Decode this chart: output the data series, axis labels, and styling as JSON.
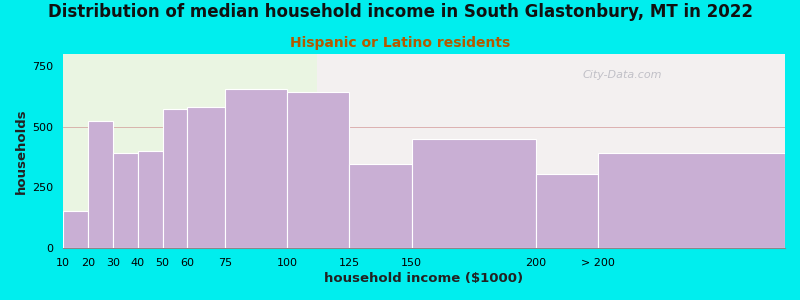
{
  "title": "Distribution of median household income in South Glastonbury, MT in 2022",
  "subtitle": "Hispanic or Latino residents",
  "xlabel": "household income ($1000)",
  "ylabel": "households",
  "bin_edges": [
    10,
    20,
    30,
    40,
    50,
    60,
    75,
    100,
    125,
    150,
    200,
    225,
    300
  ],
  "tick_positions": [
    10,
    20,
    30,
    40,
    50,
    60,
    75,
    100,
    125,
    150,
    200,
    225
  ],
  "tick_labels": [
    "10",
    "20",
    "30",
    "40",
    "50",
    "60",
    "75",
    "100",
    "125",
    "150",
    "200",
    "> 200"
  ],
  "bar_heights": [
    155,
    525,
    390,
    400,
    575,
    580,
    655,
    645,
    345,
    450,
    305,
    390
  ],
  "bar_color": "#c9afd4",
  "bar_edge_color": "#c9afd4",
  "bg_color": "#00eeee",
  "plot_bg_left": "#eaf5e2",
  "plot_bg_right": "#f3f0f0",
  "split_x": 112,
  "split_x2": 225,
  "yticks": [
    0,
    250,
    500,
    750
  ],
  "ylim": [
    0,
    800
  ],
  "xlim": [
    10,
    300
  ],
  "title_fontsize": 12,
  "subtitle_fontsize": 10,
  "subtitle_color": "#b35900",
  "axis_label_fontsize": 9.5,
  "tick_fontsize": 8,
  "watermark_text": "City-Data.com",
  "watermark_color": "#b8b8c0"
}
